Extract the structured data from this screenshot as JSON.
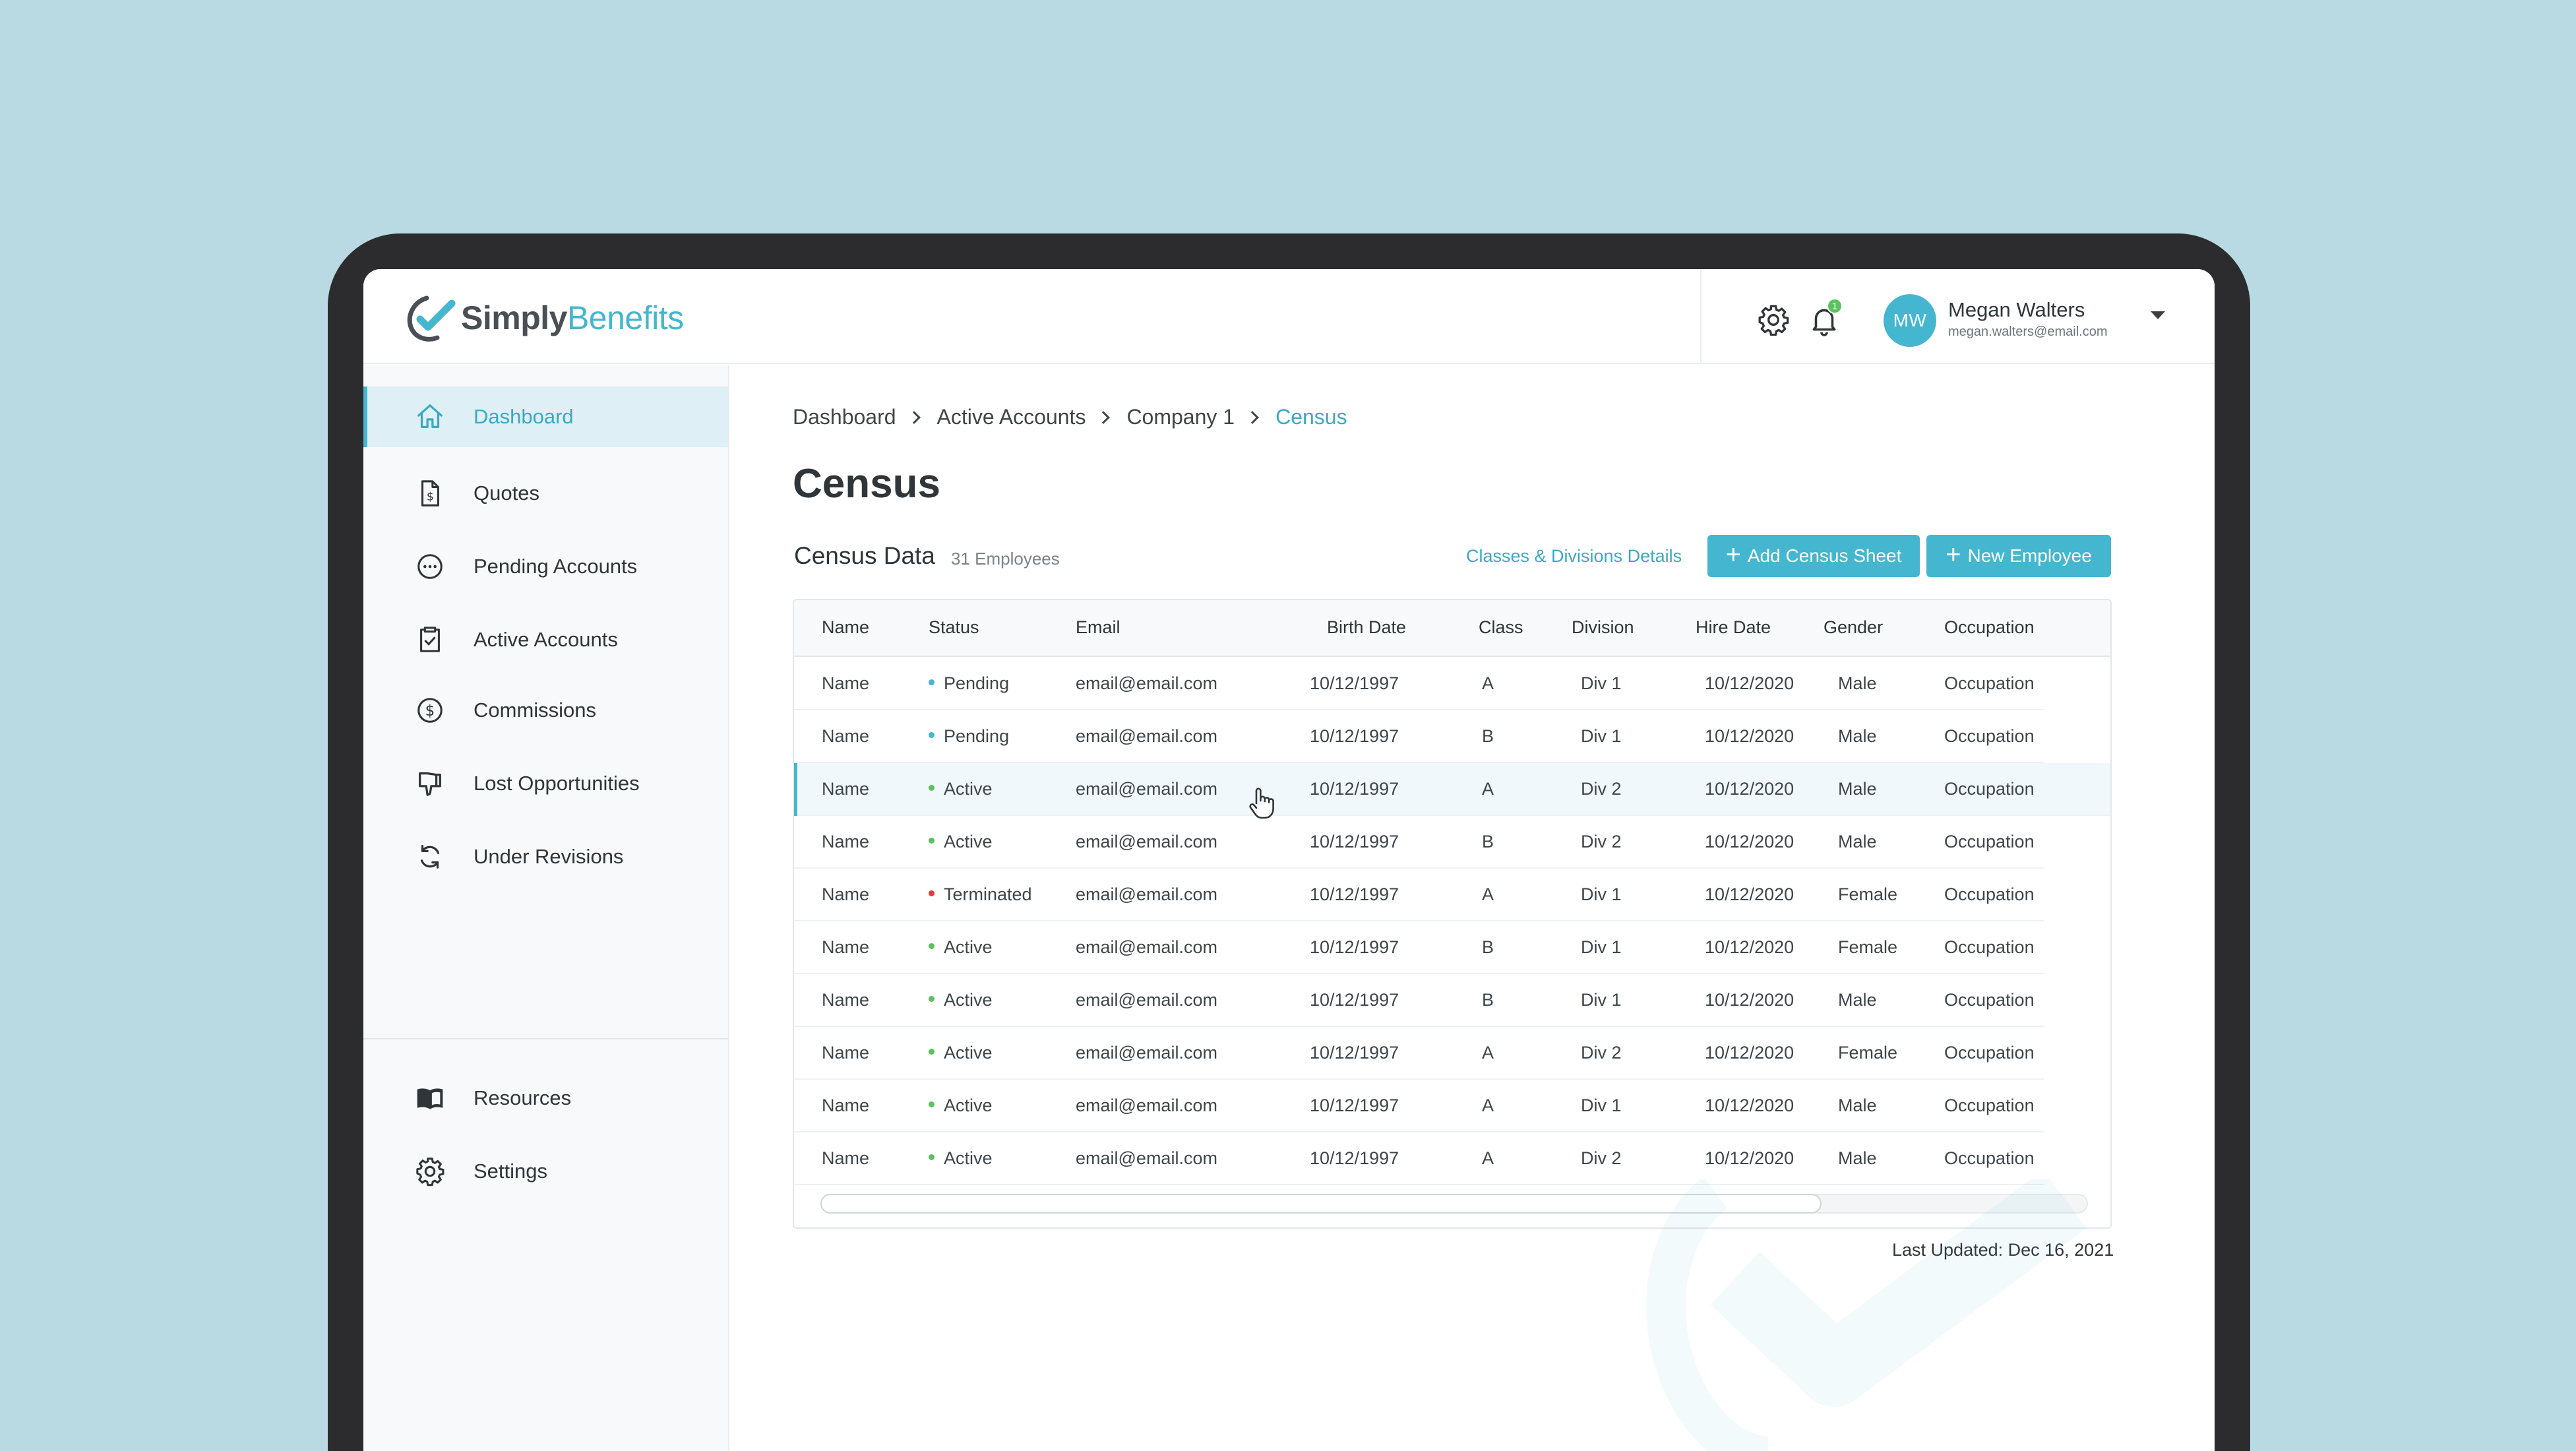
{
  "app": {
    "logo_simply": "Simply",
    "logo_benefits": "Benefits",
    "brand_color": "#45b6cf"
  },
  "header": {
    "notification_count": "1",
    "user": {
      "initials": "MW",
      "name": "Megan Walters",
      "email": "megan.walters@email.com"
    }
  },
  "sidebar": {
    "items": [
      {
        "label": "Dashboard",
        "icon": "home-icon",
        "active": true
      },
      {
        "label": "Quotes",
        "icon": "document-dollar-icon"
      },
      {
        "label": "Pending Accounts",
        "icon": "dots-circle-icon"
      },
      {
        "label": "Active Accounts",
        "icon": "clipboard-check-icon"
      },
      {
        "label": "Commissions",
        "icon": "dollar-circle-icon"
      },
      {
        "label": "Lost Opportunities",
        "icon": "thumbs-down-icon"
      },
      {
        "label": "Under Revisions",
        "icon": "refresh-icon"
      }
    ],
    "bottom_items": [
      {
        "label": "Resources",
        "icon": "book-icon"
      },
      {
        "label": "Settings",
        "icon": "gear-icon"
      }
    ]
  },
  "breadcrumb": [
    "Dashboard",
    "Active Accounts",
    "Company 1",
    "Census"
  ],
  "page": {
    "title": "Census",
    "section_title": "Census Data",
    "employee_count": "31 Employees",
    "classes_link": "Classes & Divisions Details",
    "add_census_label": "Add Census Sheet",
    "new_employee_label": "New Employee",
    "last_updated": "Last Updated: Dec 16, 2021"
  },
  "table": {
    "columns": [
      "Name",
      "Status",
      "Email",
      "Birth Date",
      "Class",
      "Division",
      "Hire Date",
      "Gender",
      "Occupation"
    ],
    "status_colors": {
      "Pending": "#45b6cf",
      "Active": "#5cc15f",
      "Terminated": "#e23b3b"
    },
    "rows": [
      {
        "name": "Name",
        "status": "Pending",
        "email": "email@email.com",
        "birth": "10/12/1997",
        "class": "A",
        "division": "Div 1",
        "hire": "10/12/2020",
        "gender": "Male",
        "occupation": "Occupation"
      },
      {
        "name": "Name",
        "status": "Pending",
        "email": "email@email.com",
        "birth": "10/12/1997",
        "class": "B",
        "division": "Div 1",
        "hire": "10/12/2020",
        "gender": "Male",
        "occupation": "Occupation"
      },
      {
        "name": "Name",
        "status": "Active",
        "email": "email@email.com",
        "birth": "10/12/1997",
        "class": "A",
        "division": "Div 2",
        "hire": "10/12/2020",
        "gender": "Male",
        "occupation": "Occupation"
      },
      {
        "name": "Name",
        "status": "Active",
        "email": "email@email.com",
        "birth": "10/12/1997",
        "class": "B",
        "division": "Div 2",
        "hire": "10/12/2020",
        "gender": "Male",
        "occupation": "Occupation"
      },
      {
        "name": "Name",
        "status": "Terminated",
        "email": "email@email.com",
        "birth": "10/12/1997",
        "class": "A",
        "division": "Div 1",
        "hire": "10/12/2020",
        "gender": "Female",
        "occupation": "Occupation"
      },
      {
        "name": "Name",
        "status": "Active",
        "email": "email@email.com",
        "birth": "10/12/1997",
        "class": "B",
        "division": "Div 1",
        "hire": "10/12/2020",
        "gender": "Female",
        "occupation": "Occupation"
      },
      {
        "name": "Name",
        "status": "Active",
        "email": "email@email.com",
        "birth": "10/12/1997",
        "class": "B",
        "division": "Div 1",
        "hire": "10/12/2020",
        "gender": "Male",
        "occupation": "Occupation"
      },
      {
        "name": "Name",
        "status": "Active",
        "email": "email@email.com",
        "birth": "10/12/1997",
        "class": "A",
        "division": "Div 2",
        "hire": "10/12/2020",
        "gender": "Female",
        "occupation": "Occupation"
      },
      {
        "name": "Name",
        "status": "Active",
        "email": "email@email.com",
        "birth": "10/12/1997",
        "class": "A",
        "division": "Div 1",
        "hire": "10/12/2020",
        "gender": "Male",
        "occupation": "Occupation"
      },
      {
        "name": "Name",
        "status": "Active",
        "email": "email@email.com",
        "birth": "10/12/1997",
        "class": "A",
        "division": "Div 2",
        "hire": "10/12/2020",
        "gender": "Male",
        "occupation": "Occupation"
      }
    ]
  }
}
